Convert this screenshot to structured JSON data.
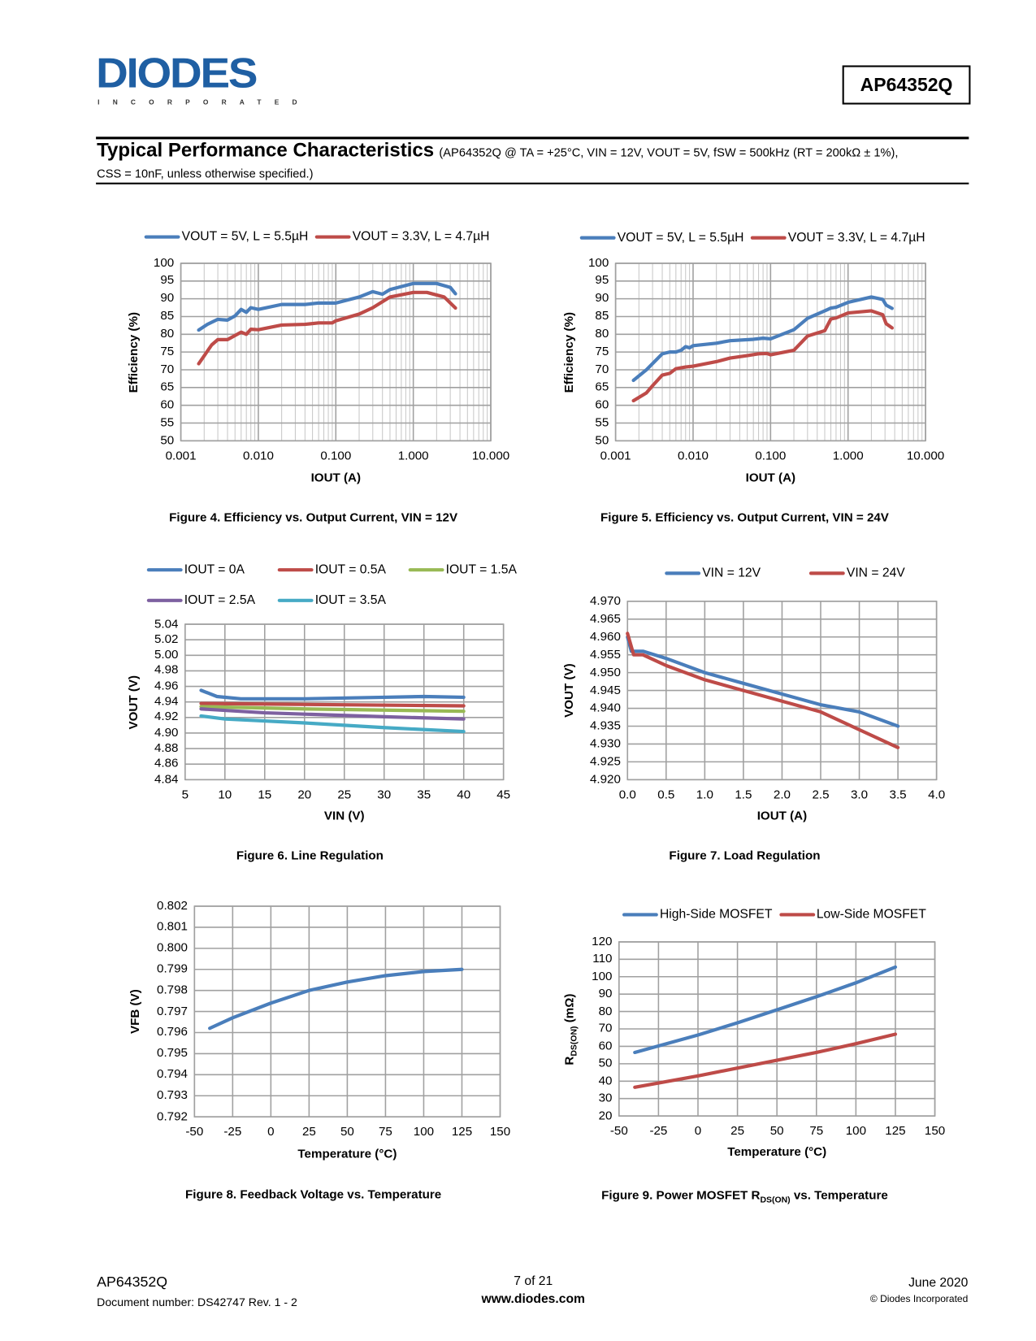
{
  "header": {
    "logo_text": "DIODES",
    "logo_sub": "INCORPORATED",
    "part_number": "AP64352Q",
    "title": "Typical Performance Characteristics",
    "conditions": "(AP64352Q @ TA = +25°C, VIN = 12V, VOUT = 5V, fSW = 500kHz (RT = 200kΩ ± 1%),",
    "conditions_line2": "CSS = 10nF, unless otherwise specified.)"
  },
  "footer": {
    "part": "AP64352Q",
    "doc_number": "Document number: DS42747 Rev. 1 - 2",
    "page": "7 of 21",
    "website": "www.diodes.com",
    "date": "June 2020",
    "copyright": "© Diodes Incorporated"
  },
  "colors": {
    "blue": "#4a7ebb",
    "red": "#be4b48",
    "green": "#98b954",
    "purple": "#7d60a0",
    "cyan": "#46aac5",
    "grid": "#a0a0a0"
  },
  "chart_data": [
    {
      "type": "line",
      "caption": "Figure 4. Efficiency vs. Output Current, VIN = 12V",
      "xlabel": "IOUT (A)",
      "ylabel": "Efficiency (%)",
      "xscale": "log",
      "xlim": [
        0.001,
        10
      ],
      "ylim": [
        50,
        100
      ],
      "xticks": [
        0.001,
        0.01,
        0.1,
        1,
        10
      ],
      "xtick_labels": [
        "0.001",
        "0.010",
        "0.100",
        "1.000",
        "10.000"
      ],
      "yticks": [
        50,
        55,
        60,
        65,
        70,
        75,
        80,
        85,
        90,
        95,
        100
      ],
      "ytick_labels": [
        "50",
        "55",
        "60",
        "65",
        "70",
        "75",
        "80",
        "85",
        "90",
        "95",
        "100"
      ],
      "legend": "top",
      "grid": true,
      "series": [
        {
          "name": "VOUT = 5V, L = 5.5µH",
          "color": "#4a7ebb",
          "x": [
            0.0017,
            0.0022,
            0.003,
            0.004,
            0.005,
            0.006,
            0.007,
            0.008,
            0.01,
            0.02,
            0.04,
            0.06,
            0.1,
            0.2,
            0.3,
            0.4,
            0.5,
            1,
            2,
            3,
            3.5
          ],
          "y": [
            81.2,
            82.8,
            84.2,
            84,
            85.2,
            87,
            86.2,
            87.5,
            87,
            88.4,
            88.4,
            88.8,
            88.8,
            90.5,
            92,
            91.3,
            92.6,
            94.3,
            94.3,
            93.2,
            91.4
          ]
        },
        {
          "name": "VOUT = 3.3V, L = 4.7µH",
          "color": "#be4b48",
          "x": [
            0.0017,
            0.0025,
            0.003,
            0.004,
            0.006,
            0.007,
            0.008,
            0.01,
            0.02,
            0.04,
            0.06,
            0.09,
            0.1,
            0.2,
            0.3,
            0.5,
            1,
            1.5,
            2.5,
            3.5
          ],
          "y": [
            71.7,
            77,
            78.5,
            78.5,
            80.6,
            80,
            81.4,
            81.3,
            82.6,
            82.8,
            83.2,
            83.2,
            83.8,
            85.7,
            87.5,
            90.5,
            91.8,
            91.8,
            90.5,
            87.4
          ]
        }
      ]
    },
    {
      "type": "line",
      "caption": "Figure 5. Efficiency vs. Output Current, VIN = 24V",
      "xlabel": "IOUT (A)",
      "ylabel": "Efficiency (%)",
      "xscale": "log",
      "xlim": [
        0.001,
        10
      ],
      "ylim": [
        50,
        100
      ],
      "xticks": [
        0.001,
        0.01,
        0.1,
        1,
        10
      ],
      "xtick_labels": [
        "0.001",
        "0.010",
        "0.100",
        "1.000",
        "10.000"
      ],
      "yticks": [
        50,
        55,
        60,
        65,
        70,
        75,
        80,
        85,
        90,
        95,
        100
      ],
      "ytick_labels": [
        "50",
        "55",
        "60",
        "65",
        "70",
        "75",
        "80",
        "85",
        "90",
        "95",
        "100"
      ],
      "legend": "top",
      "grid": true,
      "series": [
        {
          "name": "VOUT = 5V, L = 5.5µH",
          "color": "#4a7ebb",
          "x": [
            0.0017,
            0.0025,
            0.004,
            0.005,
            0.006,
            0.007,
            0.008,
            0.009,
            0.01,
            0.02,
            0.03,
            0.06,
            0.08,
            0.1,
            0.2,
            0.3,
            0.5,
            0.6,
            0.7,
            1,
            2,
            2.8,
            3.1,
            3.7
          ],
          "y": [
            67,
            70,
            74.5,
            75,
            75,
            75.5,
            76.5,
            76.2,
            76.8,
            77.5,
            78.2,
            78.6,
            78.9,
            78.7,
            81.3,
            84.5,
            86.6,
            87.4,
            87.6,
            89,
            90.5,
            89.8,
            88.2,
            87.3
          ]
        },
        {
          "name": "VOUT = 3.3V, L = 4.7µH",
          "color": "#be4b48",
          "x": [
            0.0017,
            0.0025,
            0.003,
            0.004,
            0.005,
            0.006,
            0.008,
            0.01,
            0.02,
            0.03,
            0.05,
            0.07,
            0.09,
            0.1,
            0.2,
            0.3,
            0.5,
            0.6,
            0.7,
            1,
            2,
            2.8,
            3.1,
            3.7
          ],
          "y": [
            61.3,
            63.5,
            65.5,
            68.5,
            69,
            70.3,
            70.8,
            71,
            72.3,
            73.3,
            74,
            74.5,
            74.6,
            74.2,
            75.5,
            79.5,
            81,
            84.3,
            84.6,
            86,
            86.6,
            85.5,
            83,
            81.8
          ]
        }
      ]
    },
    {
      "type": "line",
      "caption": "Figure 6. Line Regulation",
      "xlabel": "VIN (V)",
      "ylabel": "VOUT (V)",
      "xscale": "linear",
      "xlim": [
        5,
        45
      ],
      "ylim": [
        4.84,
        5.04
      ],
      "xticks": [
        5,
        10,
        15,
        20,
        25,
        30,
        35,
        40,
        45
      ],
      "xtick_labels": [
        "5",
        "10",
        "15",
        "20",
        "25",
        "30",
        "35",
        "40",
        "45"
      ],
      "yticks": [
        4.84,
        4.86,
        4.88,
        4.9,
        4.92,
        4.94,
        4.96,
        4.98,
        5.0,
        5.02,
        5.04
      ],
      "ytick_labels": [
        "4.84",
        "4.86",
        "4.88",
        "4.90",
        "4.92",
        "4.94",
        "4.96",
        "4.98",
        "5.00",
        "5.02",
        "5.04"
      ],
      "legend": "top",
      "grid": true,
      "series": [
        {
          "name": "IOUT = 0A",
          "color": "#4a7ebb",
          "x": [
            7,
            9,
            12,
            20,
            30,
            35,
            40
          ],
          "y": [
            4.955,
            4.947,
            4.944,
            4.944,
            4.946,
            4.947,
            4.946
          ]
        },
        {
          "name": "IOUT = 0.5A",
          "color": "#be4b48",
          "x": [
            7,
            40
          ],
          "y": [
            4.938,
            4.935
          ]
        },
        {
          "name": "IOUT = 1.5A",
          "color": "#98b954",
          "x": [
            7,
            20,
            40
          ],
          "y": [
            4.934,
            4.931,
            4.928
          ]
        },
        {
          "name": "IOUT = 2.5A",
          "color": "#7d60a0",
          "x": [
            7,
            15,
            30,
            40
          ],
          "y": [
            4.931,
            4.926,
            4.921,
            4.918
          ]
        },
        {
          "name": "IOUT = 3.5A",
          "color": "#46aac5",
          "x": [
            7,
            10,
            20,
            30,
            40
          ],
          "y": [
            4.922,
            4.918,
            4.913,
            4.907,
            4.902
          ]
        }
      ]
    },
    {
      "type": "line",
      "caption": "Figure 7. Load Regulation",
      "xlabel": "IOUT (A)",
      "ylabel": "VOUT (V)",
      "xscale": "linear",
      "xlim": [
        0,
        4
      ],
      "ylim": [
        4.92,
        4.97
      ],
      "xticks": [
        0,
        0.5,
        1,
        1.5,
        2,
        2.5,
        3,
        3.5,
        4
      ],
      "xtick_labels": [
        "0.0",
        "0.5",
        "1.0",
        "1.5",
        "2.0",
        "2.5",
        "3.0",
        "3.5",
        "4.0"
      ],
      "yticks": [
        4.92,
        4.925,
        4.93,
        4.935,
        4.94,
        4.945,
        4.95,
        4.955,
        4.96,
        4.965,
        4.97
      ],
      "ytick_labels": [
        "4.920",
        "4.925",
        "4.930",
        "4.935",
        "4.940",
        "4.945",
        "4.950",
        "4.955",
        "4.960",
        "4.965",
        "4.970"
      ],
      "legend": "top",
      "grid": true,
      "series": [
        {
          "name": "VIN = 12V",
          "color": "#4a7ebb",
          "x": [
            0,
            0.05,
            0.2,
            0.5,
            1,
            1.5,
            2,
            2.5,
            3,
            3.5
          ],
          "y": [
            4.96,
            4.956,
            4.956,
            4.954,
            4.95,
            4.947,
            4.944,
            4.941,
            4.939,
            4.935
          ]
        },
        {
          "name": "VIN = 24V",
          "color": "#be4b48",
          "x": [
            0,
            0.08,
            0.2,
            0.5,
            1,
            1.5,
            2,
            2.5,
            3,
            3.5
          ],
          "y": [
            4.961,
            4.955,
            4.955,
            4.952,
            4.948,
            4.945,
            4.942,
            4.939,
            4.934,
            4.929
          ]
        }
      ]
    },
    {
      "type": "line",
      "caption": "Figure 8. Feedback Voltage vs. Temperature",
      "xlabel": "Temperature (°C)",
      "ylabel": "VFB (V)",
      "ylabel_main": "V",
      "ylabel_sub": "FB",
      "ylabel_tail": " (V)",
      "xscale": "linear",
      "xlim": [
        -50,
        150
      ],
      "ylim": [
        0.792,
        0.802
      ],
      "xticks": [
        -50,
        -25,
        0,
        25,
        50,
        75,
        100,
        125,
        150
      ],
      "xtick_labels": [
        "-50",
        "-25",
        "0",
        "25",
        "50",
        "75",
        "100",
        "125",
        "150"
      ],
      "yticks": [
        0.792,
        0.793,
        0.794,
        0.795,
        0.796,
        0.797,
        0.798,
        0.799,
        0.8,
        0.801,
        0.802
      ],
      "ytick_labels": [
        "0.792",
        "0.793",
        "0.794",
        "0.795",
        "0.796",
        "0.797",
        "0.798",
        "0.799",
        "0.800",
        "0.801",
        "0.802"
      ],
      "legend": "none",
      "grid": true,
      "series": [
        {
          "name": "VFB",
          "color": "#4a7ebb",
          "x": [
            -40,
            -25,
            0,
            25,
            50,
            75,
            100,
            125
          ],
          "y": [
            0.7962,
            0.7967,
            0.7974,
            0.798,
            0.7984,
            0.7987,
            0.7989,
            0.799
          ]
        }
      ]
    },
    {
      "type": "line",
      "caption": "Figure 9. Power MOSFET RDS(ON) vs. Temperature",
      "caption_main": "Figure 9. Power MOSFET R",
      "caption_sub": "DS(ON)",
      "caption_tail": " vs. Temperature",
      "xlabel": "Temperature (°C)",
      "ylabel": "RDS(ON) (mΩ)",
      "ylabel_main": "R",
      "ylabel_sub": "DS(ON)",
      "ylabel_tail": " (mΩ)",
      "xscale": "linear",
      "xlim": [
        -50,
        150
      ],
      "ylim": [
        20,
        120
      ],
      "xticks": [
        -50,
        -25,
        0,
        25,
        50,
        75,
        100,
        125,
        150
      ],
      "xtick_labels": [
        "-50",
        "-25",
        "0",
        "25",
        "50",
        "75",
        "100",
        "125",
        "150"
      ],
      "yticks": [
        20,
        30,
        40,
        50,
        60,
        70,
        80,
        90,
        100,
        110,
        120
      ],
      "ytick_labels": [
        "20",
        "30",
        "40",
        "50",
        "60",
        "70",
        "80",
        "90",
        "100",
        "110",
        "120"
      ],
      "legend": "top",
      "grid": true,
      "series": [
        {
          "name": "High-Side MOSFET",
          "color": "#4a7ebb",
          "x": [
            -40,
            0,
            25,
            50,
            75,
            100,
            125
          ],
          "y": [
            56.5,
            66.5,
            73.5,
            81,
            88.5,
            96.5,
            105.5
          ]
        },
        {
          "name": "Low-Side MOSFET",
          "color": "#be4b48",
          "x": [
            -40,
            0,
            25,
            50,
            75,
            100,
            125
          ],
          "y": [
            36.5,
            43,
            47.5,
            52,
            56.5,
            61.5,
            67
          ]
        }
      ]
    }
  ]
}
